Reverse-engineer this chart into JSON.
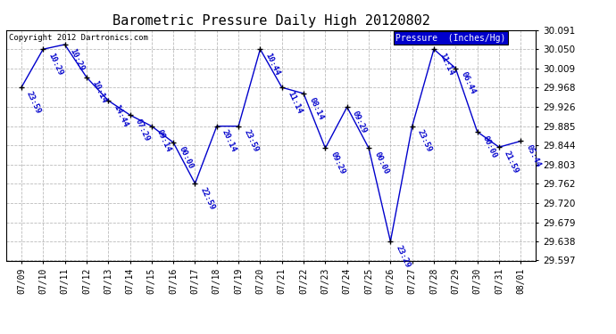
{
  "title": "Barometric Pressure Daily High 20120802",
  "copyright": "Copyright 2012 Dartronics.com",
  "legend_label": "Pressure  (Inches/Hg)",
  "x_labels": [
    "07/09",
    "07/10",
    "07/11",
    "07/12",
    "07/13",
    "07/14",
    "07/15",
    "07/16",
    "07/17",
    "07/18",
    "07/19",
    "07/20",
    "07/21",
    "07/22",
    "07/23",
    "07/24",
    "07/25",
    "07/26",
    "07/27",
    "07/28",
    "07/29",
    "07/30",
    "07/31",
    "08/01"
  ],
  "y_values": [
    29.968,
    30.05,
    30.06,
    29.99,
    29.94,
    29.909,
    29.885,
    29.85,
    29.762,
    29.885,
    29.885,
    30.05,
    29.968,
    29.955,
    29.838,
    29.926,
    29.838,
    29.638,
    29.885,
    30.05,
    30.009,
    29.873,
    29.84,
    29.853
  ],
  "time_labels": [
    "23:59",
    "10:29",
    "10:29",
    "10:14",
    "14:44",
    "07:29",
    "09:14",
    "00:00",
    "22:59",
    "20:14",
    "23:59",
    "10:44",
    "11:14",
    "08:14",
    "09:29",
    "09:29",
    "00:00",
    "23:29",
    "23:59",
    "11:14",
    "06:44",
    "00:00",
    "21:59",
    "05:44"
  ],
  "line_color": "#0000cc",
  "marker_color": "#000000",
  "grid_color": "#bbbbbb",
  "bg_color": "#ffffff",
  "legend_bg": "#0000cc",
  "legend_fg": "#ffffff",
  "ylim_min": 29.597,
  "ylim_max": 30.091,
  "yticks": [
    29.597,
    29.638,
    29.679,
    29.72,
    29.762,
    29.803,
    29.844,
    29.885,
    29.926,
    29.968,
    30.009,
    30.05,
    30.091
  ]
}
